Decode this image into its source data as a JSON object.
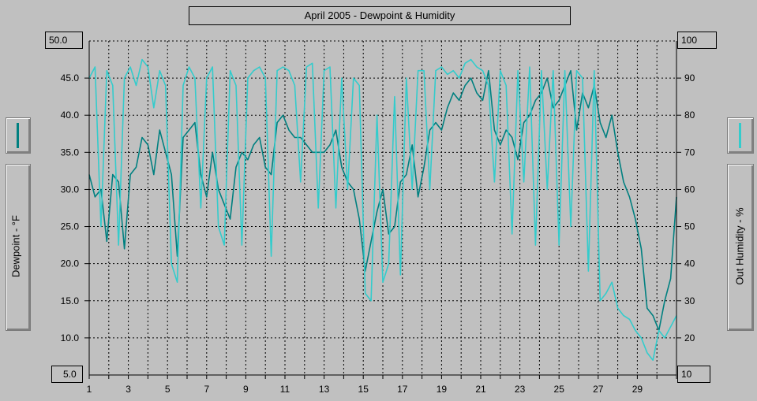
{
  "chart_data": {
    "type": "line",
    "title": "April 2005 - Dewpoint & Humidity",
    "ylabel_left": "Dewpoint - °F",
    "ylabel_right": "Out Humidity - %",
    "y_left_range": [
      5,
      50
    ],
    "y_right_range": [
      10,
      100
    ],
    "y_left_ticks": [
      "50.0",
      "45.0",
      "40.0",
      "35.0",
      "30.0",
      "25.0",
      "20.0",
      "15.0",
      "10.0",
      "5.0"
    ],
    "y_right_ticks": [
      "100",
      "90",
      "80",
      "70",
      "60",
      "50",
      "40",
      "30",
      "20",
      "10"
    ],
    "x_range": [
      1,
      31
    ],
    "x_ticks": [
      "1",
      "3",
      "5",
      "7",
      "9",
      "11",
      "13",
      "15",
      "17",
      "19",
      "21",
      "23",
      "25",
      "27",
      "29"
    ],
    "grid": true,
    "series": [
      {
        "name": "Dewpoint - °F",
        "axis": "left",
        "color": "#008080",
        "x": [
          1.0,
          1.3,
          1.6,
          1.9,
          2.2,
          2.5,
          2.8,
          3.1,
          3.4,
          3.7,
          4.0,
          4.3,
          4.6,
          4.9,
          5.2,
          5.5,
          5.8,
          6.1,
          6.4,
          6.7,
          7.0,
          7.3,
          7.6,
          7.9,
          8.2,
          8.5,
          8.8,
          9.1,
          9.4,
          9.7,
          10.0,
          10.3,
          10.6,
          10.9,
          11.2,
          11.5,
          11.8,
          12.1,
          12.4,
          12.7,
          13.0,
          13.3,
          13.6,
          13.9,
          14.2,
          14.5,
          14.8,
          15.1,
          15.4,
          15.7,
          16.0,
          16.3,
          16.6,
          16.9,
          17.2,
          17.5,
          17.8,
          18.1,
          18.4,
          18.7,
          19.0,
          19.3,
          19.6,
          19.9,
          20.2,
          20.5,
          20.8,
          21.1,
          21.4,
          21.7,
          22.0,
          22.3,
          22.6,
          22.9,
          23.2,
          23.5,
          23.8,
          24.1,
          24.4,
          24.7,
          25.0,
          25.3,
          25.6,
          25.9,
          26.2,
          26.5,
          26.8,
          27.1,
          27.4,
          27.7,
          28.0,
          28.3,
          28.6,
          28.9,
          29.2,
          29.5,
          29.8,
          30.1,
          30.4,
          30.7,
          31.0
        ],
        "values": [
          32,
          29,
          30,
          23,
          32,
          31,
          22,
          32,
          33,
          37,
          36,
          32,
          38,
          35,
          32,
          21,
          37,
          38,
          39,
          32,
          29,
          35,
          30,
          28,
          26,
          33,
          35,
          34,
          36,
          37,
          33,
          32,
          39,
          40,
          38,
          37,
          37,
          36,
          35,
          35,
          35,
          36,
          38,
          33,
          31,
          30,
          26,
          19,
          23,
          27,
          30,
          24,
          25,
          31,
          32,
          36,
          29,
          33,
          38,
          39,
          38,
          41,
          43,
          42,
          44,
          45,
          43,
          42,
          46,
          38,
          36,
          38,
          37,
          34,
          39,
          40,
          42,
          43,
          45,
          41,
          42,
          44,
          46,
          38,
          43,
          41,
          44,
          39,
          37,
          40,
          35,
          31,
          29,
          26,
          22,
          14,
          13,
          11,
          15,
          18,
          29
        ]
      },
      {
        "name": "Out Humidity - %",
        "axis": "right",
        "color": "#33cccc",
        "x": [
          1.0,
          1.3,
          1.6,
          1.9,
          2.2,
          2.5,
          2.8,
          3.1,
          3.4,
          3.7,
          4.0,
          4.3,
          4.6,
          4.9,
          5.2,
          5.5,
          5.8,
          6.1,
          6.4,
          6.7,
          7.0,
          7.3,
          7.6,
          7.9,
          8.2,
          8.5,
          8.8,
          9.1,
          9.4,
          9.7,
          10.0,
          10.3,
          10.6,
          10.9,
          11.2,
          11.5,
          11.8,
          12.1,
          12.4,
          12.7,
          13.0,
          13.3,
          13.6,
          13.9,
          14.2,
          14.5,
          14.8,
          15.1,
          15.4,
          15.7,
          16.0,
          16.3,
          16.6,
          16.9,
          17.2,
          17.5,
          17.8,
          18.1,
          18.4,
          18.7,
          19.0,
          19.3,
          19.6,
          19.9,
          20.2,
          20.5,
          20.8,
          21.1,
          21.4,
          21.7,
          22.0,
          22.3,
          22.6,
          22.9,
          23.2,
          23.5,
          23.8,
          24.1,
          24.4,
          24.7,
          25.0,
          25.3,
          25.6,
          25.9,
          26.2,
          26.5,
          26.8,
          27.1,
          27.4,
          27.7,
          28.0,
          28.3,
          28.6,
          28.9,
          29.2,
          29.5,
          29.8,
          30.1,
          30.4,
          30.7,
          31.0
        ],
        "values": [
          90,
          93,
          50,
          92,
          88,
          45,
          90,
          93,
          88,
          95,
          93,
          82,
          92,
          88,
          40,
          35,
          88,
          93,
          90,
          55,
          90,
          93,
          50,
          45,
          92,
          88,
          45,
          90,
          92,
          93,
          90,
          42,
          92,
          93,
          92,
          88,
          62,
          93,
          94,
          55,
          92,
          93,
          55,
          90,
          60,
          90,
          88,
          32,
          30,
          80,
          35,
          40,
          85,
          37,
          90,
          60,
          92,
          92,
          60,
          92,
          93,
          91,
          92,
          90,
          94,
          95,
          93,
          92,
          88,
          62,
          92,
          88,
          48,
          92,
          62,
          93,
          45,
          92,
          60,
          92,
          45,
          92,
          50,
          92,
          90,
          38,
          92,
          30,
          32,
          35,
          28,
          26,
          25,
          22,
          20,
          16,
          14,
          22,
          20,
          23,
          26
        ]
      }
    ]
  }
}
